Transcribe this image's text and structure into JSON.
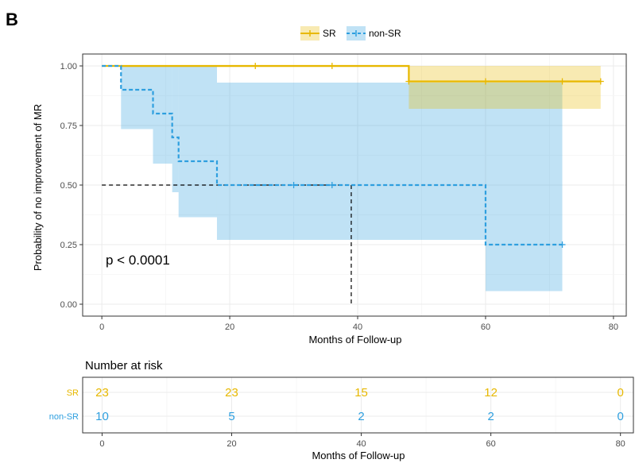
{
  "panel_label": "B",
  "colors": {
    "SR": "#E7B800",
    "non-SR": "#2E9FDF",
    "panel_border": "#333333",
    "grid_major": "#ebebeb",
    "grid_minor": "#f5f5f5"
  },
  "legend": {
    "items": [
      {
        "name": "SR",
        "color": "#E7B800"
      },
      {
        "name": "non-SR",
        "color": "#2E9FDF"
      }
    ]
  },
  "pvalue_text": "p < 0.0001",
  "chart_data": [
    {
      "type": "line",
      "subtype": "kaplan-meier",
      "xlabel": "Months of Follow-up",
      "ylabel": "Probability of no improvement of MR",
      "xlim": [
        -3,
        82
      ],
      "ylim": [
        -0.05,
        1.05
      ],
      "xticks": [
        0,
        20,
        40,
        60,
        80
      ],
      "xtick_labels": [
        "0",
        "20",
        "40",
        "60",
        "80"
      ],
      "yticks": [
        0,
        0.25,
        0.5,
        0.75,
        1.0
      ],
      "ytick_labels": [
        "0.00",
        "0.25",
        "0.50",
        "0.75",
        "1.00"
      ],
      "grid": true,
      "legend_position": "top",
      "series": [
        {
          "name": "SR",
          "linestyle": "solid",
          "steps": [
            [
              0,
              1.0
            ],
            [
              48,
              0.935
            ],
            [
              78,
              0.935
            ]
          ],
          "censors": [
            [
              24,
              1.0
            ],
            [
              36,
              1.0
            ],
            [
              48,
              0.935
            ],
            [
              60,
              0.935
            ],
            [
              72,
              0.935
            ],
            [
              78,
              0.935
            ]
          ],
          "ci": [
            {
              "x0": 3,
              "x1": 48,
              "low": 0.995,
              "high": 1.0
            },
            {
              "x0": 48,
              "x1": 78,
              "low": 0.82,
              "high": 1.0
            }
          ]
        },
        {
          "name": "non-SR",
          "linestyle": "dashed",
          "steps": [
            [
              0,
              1.0
            ],
            [
              3,
              0.9
            ],
            [
              8,
              0.8
            ],
            [
              11,
              0.7
            ],
            [
              12,
              0.6
            ],
            [
              18,
              0.5
            ],
            [
              60,
              0.25
            ],
            [
              72,
              0.25
            ]
          ],
          "censors": [
            [
              30,
              0.5
            ],
            [
              36,
              0.5
            ],
            [
              72,
              0.25
            ]
          ],
          "ci": [
            {
              "x0": 3,
              "x1": 8,
              "low": 0.735,
              "high": 1.0
            },
            {
              "x0": 8,
              "x1": 11,
              "low": 0.59,
              "high": 1.0
            },
            {
              "x0": 11,
              "x1": 12,
              "low": 0.47,
              "high": 1.0
            },
            {
              "x0": 12,
              "x1": 18,
              "low": 0.365,
              "high": 1.0
            },
            {
              "x0": 18,
              "x1": 60,
              "low": 0.27,
              "high": 0.93
            },
            {
              "x0": 60,
              "x1": 72,
              "low": 0.055,
              "high": 0.93
            }
          ]
        }
      ],
      "median_line": {
        "y": 0.5,
        "x": 39
      }
    },
    {
      "type": "table",
      "title": "Number at risk",
      "xlabel": "Months of Follow-up",
      "xlim": [
        -3,
        82
      ],
      "times": [
        0,
        20,
        40,
        60,
        80
      ],
      "xtick_labels": [
        "0",
        "20",
        "40",
        "60",
        "80"
      ],
      "rows": [
        {
          "name": "SR",
          "values": [
            "23",
            "23",
            "15",
            "12",
            "0"
          ]
        },
        {
          "name": "non-SR",
          "values": [
            "10",
            "5",
            "2",
            "2",
            "0"
          ]
        }
      ]
    }
  ]
}
